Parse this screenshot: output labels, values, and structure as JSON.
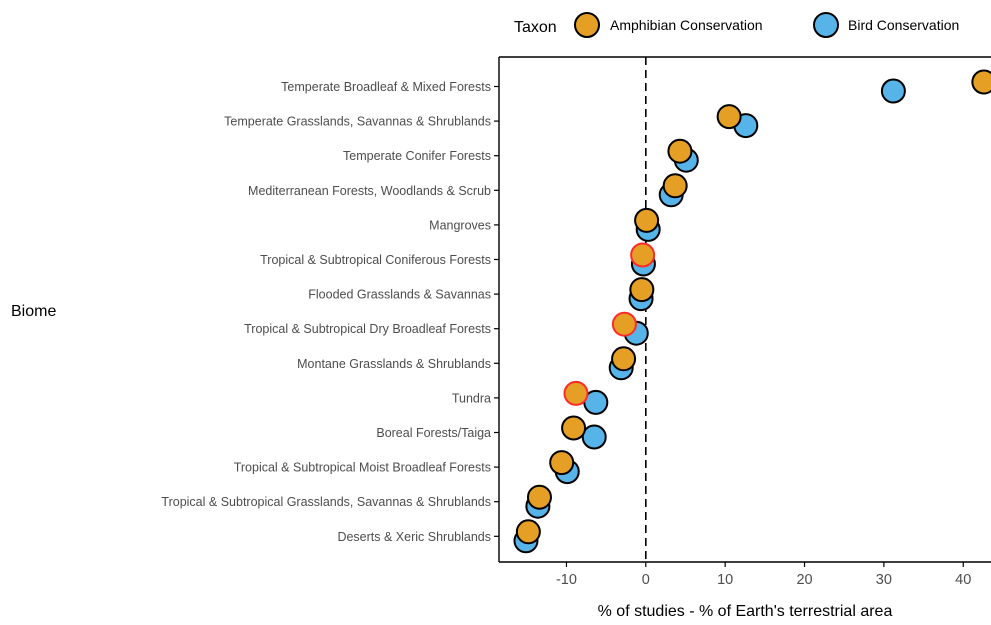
{
  "chart_data": {
    "type": "scatter",
    "title": "",
    "xlabel": "% of studies - % of Earth's terrestrial area",
    "ylabel": "Biome",
    "xlim": [
      -18.5,
      43.5
    ],
    "x_ticks": [
      -10,
      0,
      10,
      20,
      30,
      40
    ],
    "x_tick_labels": [
      "-10",
      "0",
      "10",
      "20",
      "30",
      "40"
    ],
    "reference_line": {
      "x": 0,
      "style": "dashed"
    },
    "grid": false,
    "legend": {
      "title": "Taxon",
      "position": "top"
    },
    "categories": [
      "Temperate Broadleaf & Mixed Forests",
      "Temperate Grasslands, Savannas & Shrublands",
      "Temperate Conifer Forests",
      "Mediterranean Forests, Woodlands & Scrub",
      "Mangroves",
      "Tropical & Subtropical Coniferous Forests",
      "Flooded Grasslands & Savannas",
      "Tropical & Subtropical Dry Broadleaf Forests",
      "Montane Grasslands & Shrublands",
      "Tundra",
      "Boreal Forests/Taiga",
      "Tropical & Subtropical Moist Broadleaf Forests",
      "Tropical & Subtropical Grasslands, Savannas & Shrublands",
      "Deserts & Xeric Shrublands"
    ],
    "series": [
      {
        "name": "Bird Conservation",
        "color": "#56b4e9",
        "values": [
          31.2,
          12.6,
          5.1,
          3.2,
          0.3,
          -0.3,
          -0.6,
          -1.2,
          -3.1,
          -6.3,
          -6.5,
          -9.9,
          -13.6,
          -15.1
        ],
        "highlight": [
          false,
          false,
          false,
          false,
          false,
          false,
          false,
          false,
          false,
          false,
          false,
          false,
          false,
          false
        ]
      },
      {
        "name": "Amphibian Conservation",
        "color": "#e69f25",
        "values": [
          42.6,
          10.5,
          4.3,
          3.7,
          0.1,
          -0.4,
          -0.5,
          -2.7,
          -2.8,
          -8.8,
          -9.1,
          -10.6,
          -13.4,
          -14.8
        ],
        "highlight": [
          false,
          false,
          false,
          false,
          false,
          true,
          false,
          true,
          false,
          true,
          false,
          false,
          false,
          false
        ]
      }
    ],
    "highlight_edge_color": "#ff2a2a",
    "point_edge_color": "#000000"
  }
}
